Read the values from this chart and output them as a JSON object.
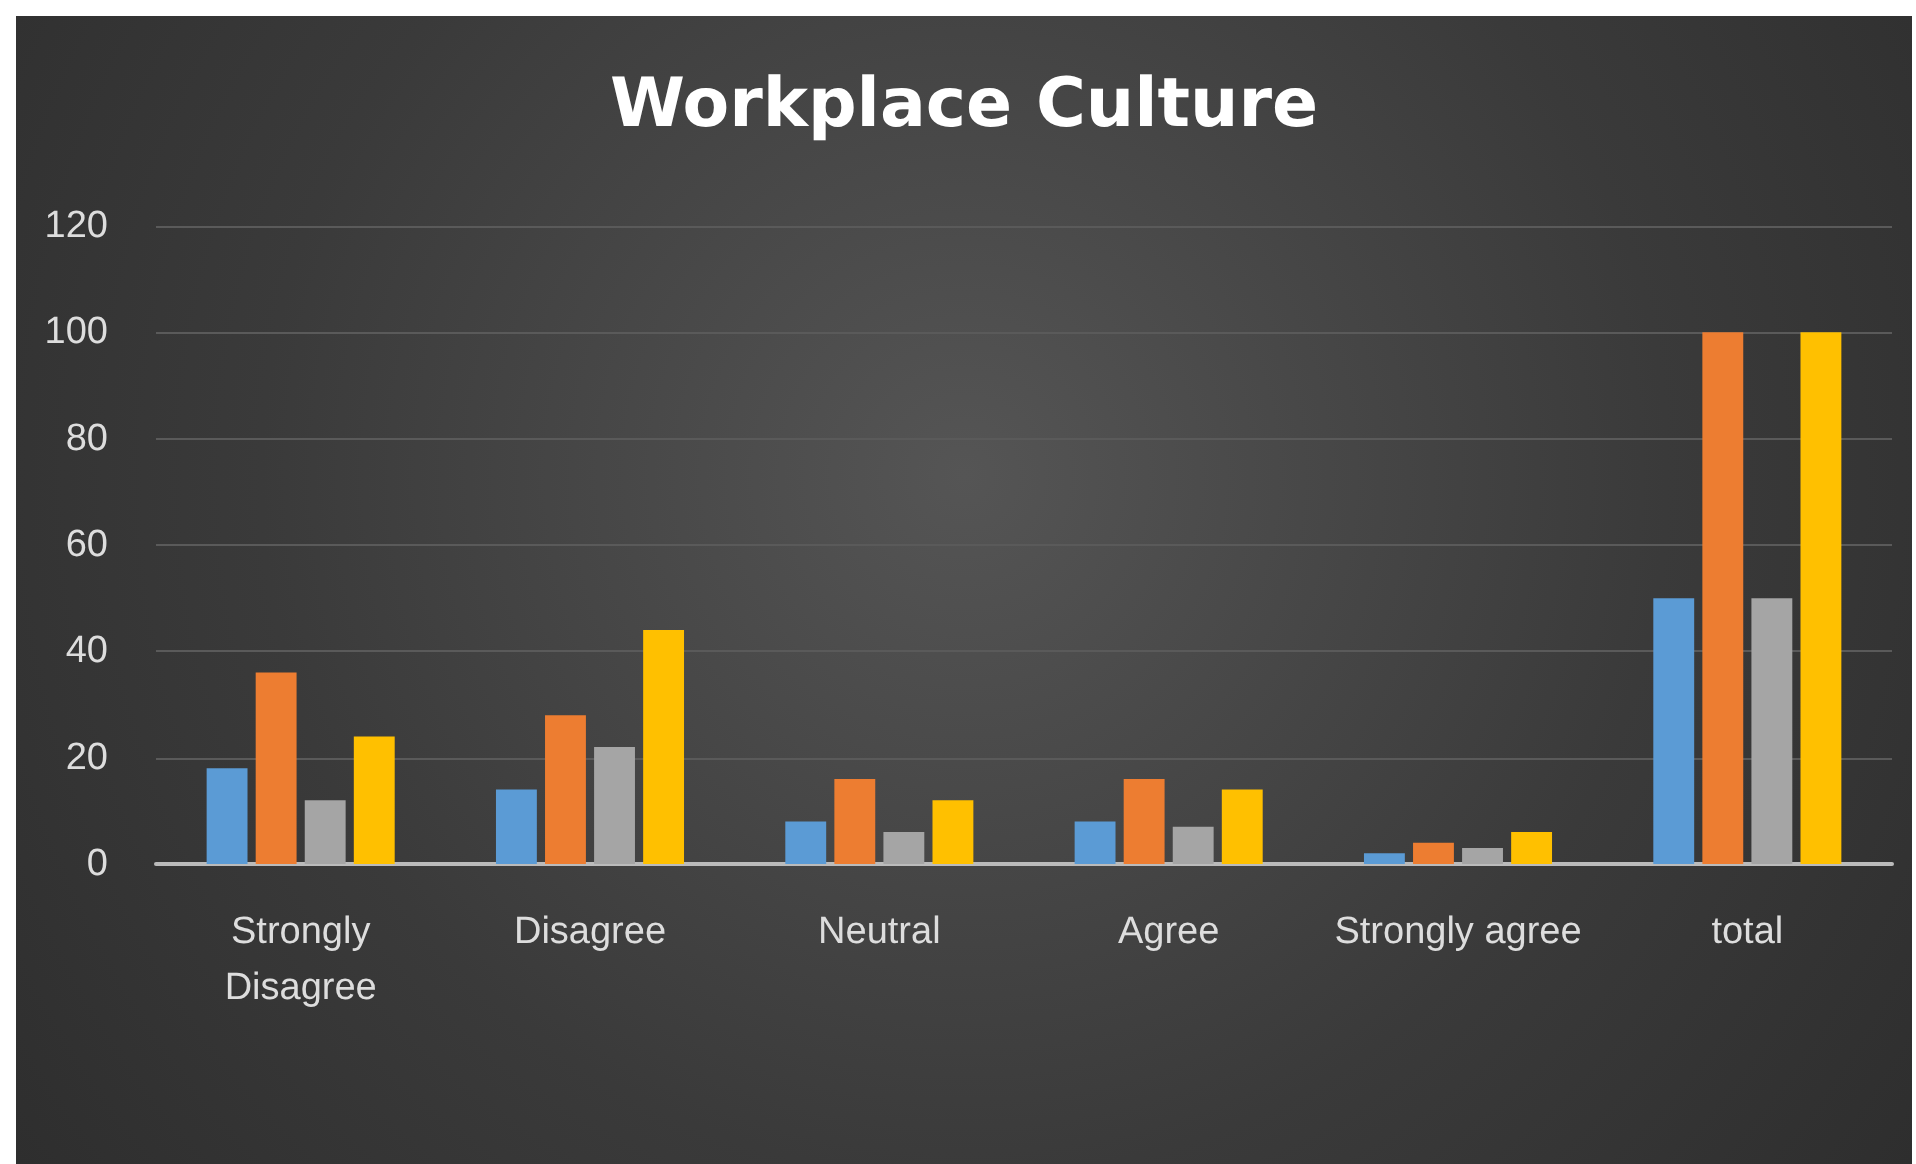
{
  "chart_data": {
    "type": "bar",
    "title": "Workplace Culture",
    "categories": [
      "Strongly Disagree",
      "Disagree",
      "Neutral",
      "Agree",
      "Strongly agree",
      "total"
    ],
    "series": [
      {
        "color": "#5b9bd5",
        "values": [
          18,
          14,
          8,
          8,
          2,
          50
        ]
      },
      {
        "color": "#ed7d31",
        "values": [
          36,
          28,
          16,
          16,
          4,
          100
        ]
      },
      {
        "color": "#a5a5a5",
        "values": [
          12,
          22,
          6,
          7,
          3,
          50
        ]
      },
      {
        "color": "#ffc000",
        "values": [
          24,
          44,
          12,
          14,
          6,
          100
        ]
      }
    ],
    "ylim": [
      0,
      120
    ],
    "yticks": [
      0,
      20,
      40,
      60,
      80,
      100,
      120
    ],
    "grid": "y"
  }
}
